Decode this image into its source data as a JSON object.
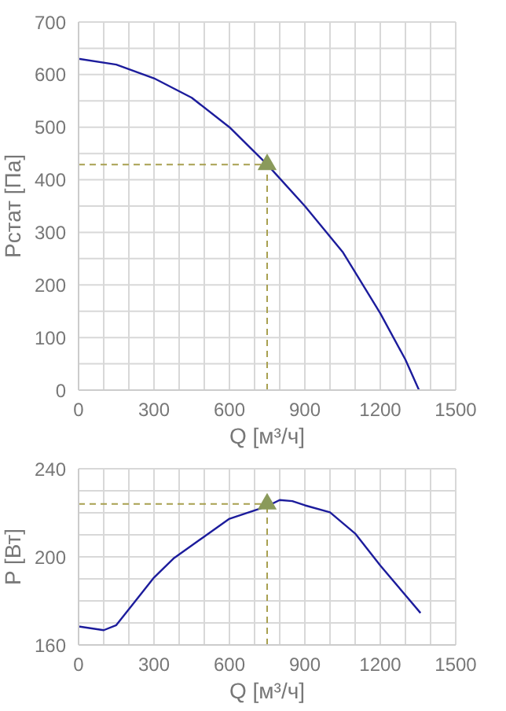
{
  "chart_data": [
    {
      "type": "line",
      "xlabel": "Q [м³/ч]",
      "ylabel": "Pстат [Па]",
      "xlim": [
        0,
        1500
      ],
      "xticks": [
        0,
        {
          "value": 100,
          "label": null
        },
        {
          "value": 200,
          "label": null
        },
        300,
        {
          "value": 400,
          "label": null
        },
        {
          "value": 500,
          "label": null
        },
        600,
        {
          "value": 700,
          "label": null
        },
        {
          "value": 800,
          "label": null
        },
        900,
        {
          "value": 1000,
          "label": null
        },
        {
          "value": 1100,
          "label": null
        },
        1200,
        {
          "value": 1300,
          "label": null
        },
        {
          "value": 1400,
          "label": null
        },
        1500
      ],
      "ylim": [
        0,
        700
      ],
      "yticks": [
        0,
        {
          "value": 50,
          "label": null
        },
        100,
        {
          "value": 150,
          "label": null
        },
        200,
        {
          "value": 250,
          "label": null
        },
        300,
        {
          "value": 350,
          "label": null
        },
        400,
        {
          "value": 450,
          "label": null
        },
        500,
        {
          "value": 550,
          "label": null
        },
        600,
        {
          "value": 650,
          "label": null
        },
        700
      ],
      "grid": true,
      "marker": "none",
      "series": [
        {
          "color": "#1c1c9c",
          "x": [
            0,
            150,
            300,
            450,
            600,
            750,
            900,
            1050,
            1100,
            1200,
            1300,
            1354
          ],
          "values": [
            630,
            619,
            593,
            556,
            500,
            429,
            350,
            263,
            224,
            146,
            58,
            0
          ]
        },
        {
          "color": "#a8a050",
          "line_style": "dashed",
          "x": [
            0,
            750
          ],
          "values": [
            429,
            429
          ]
        },
        {
          "color": "#a8a050",
          "line_style": "dashed",
          "x": [
            750,
            750
          ],
          "values": [
            0,
            429
          ]
        },
        {
          "type": "scatter",
          "marker": "triangle",
          "color": "#8a9a5b",
          "x": [
            750
          ],
          "values": [
            429
          ]
        }
      ]
    },
    {
      "type": "line",
      "xlabel": "Q [м³/ч]",
      "ylabel": "P [Вт]",
      "xlim": [
        0,
        1500
      ],
      "xticks": [
        0,
        {
          "value": 100,
          "label": null
        },
        {
          "value": 200,
          "label": null
        },
        300,
        {
          "value": 400,
          "label": null
        },
        {
          "value": 500,
          "label": null
        },
        600,
        {
          "value": 700,
          "label": null
        },
        {
          "value": 800,
          "label": null
        },
        900,
        {
          "value": 1000,
          "label": null
        },
        {
          "value": 1100,
          "label": null
        },
        1200,
        {
          "value": 1300,
          "label": null
        },
        {
          "value": 1400,
          "label": null
        },
        1500
      ],
      "ylim": [
        160,
        240
      ],
      "yticks": [
        160,
        {
          "value": 170,
          "label": null
        },
        {
          "value": 180,
          "label": null
        },
        {
          "value": 190,
          "label": null
        },
        200,
        {
          "value": 210,
          "label": null
        },
        {
          "value": 220,
          "label": null
        },
        {
          "value": 230,
          "label": null
        },
        240
      ],
      "grid": true,
      "marker": "none",
      "series": [
        {
          "color": "#1c1c9c",
          "x": [
            0,
            100,
            150,
            300,
            380,
            600,
            750,
            800,
            850,
            900,
            1000,
            1100,
            1200,
            1360
          ],
          "values": [
            168.4,
            166.7,
            169,
            190.6,
            199.5,
            217.3,
            223,
            225.8,
            225.3,
            223.4,
            220.2,
            210.6,
            196.1,
            174.5
          ]
        },
        {
          "color": "#a8a050",
          "line_style": "dashed",
          "x": [
            0,
            750
          ],
          "values": [
            224,
            224
          ]
        },
        {
          "color": "#a8a050",
          "line_style": "dashed",
          "x": [
            750,
            750
          ],
          "values": [
            160,
            224
          ]
        },
        {
          "type": "scatter",
          "marker": "triangle",
          "color": "#8a9a5b",
          "x": [
            750
          ],
          "values": [
            224
          ]
        }
      ]
    }
  ]
}
